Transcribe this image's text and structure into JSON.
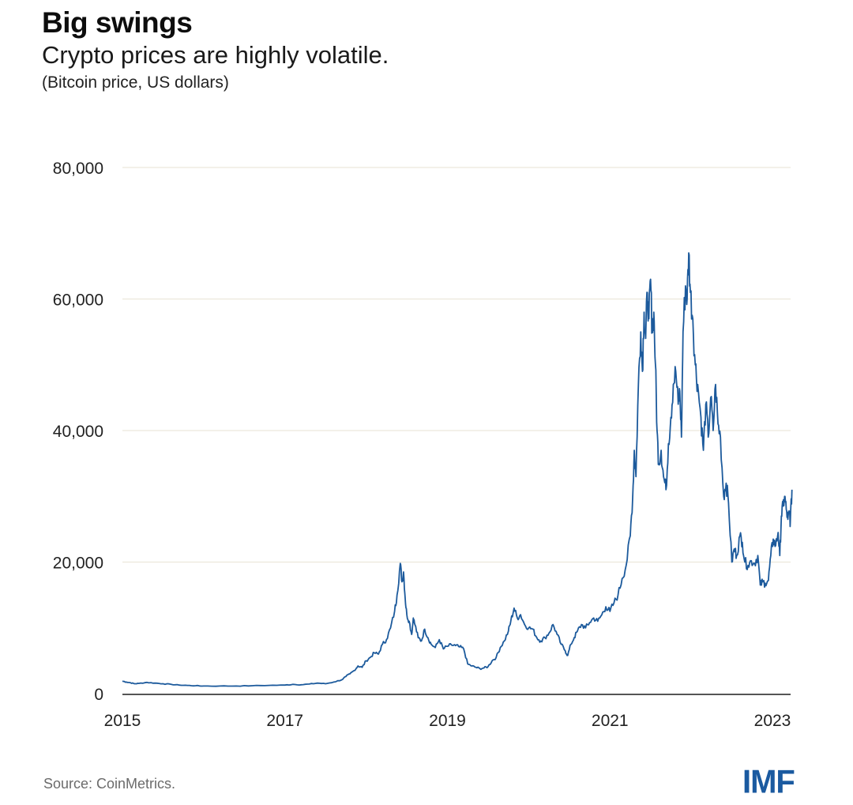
{
  "chart_data": {
    "type": "line",
    "title": "Big swings",
    "subtitle": "Crypto prices are highly volatile.",
    "units_note": "(Bitcoin price, US dollars)",
    "xlabel": "",
    "ylabel": "",
    "xlim": [
      2015,
      2023.2
    ],
    "ylim": [
      0,
      80000
    ],
    "y_ticks": [
      {
        "value": 0,
        "label": "0"
      },
      {
        "value": 20000,
        "label": "20,000"
      },
      {
        "value": 40000,
        "label": "40,000"
      },
      {
        "value": 60000,
        "label": "60,000"
      },
      {
        "value": 80000,
        "label": "80,000"
      }
    ],
    "x_ticks": [
      {
        "value": 2015,
        "label": "2015"
      },
      {
        "value": 2017,
        "label": "2017"
      },
      {
        "value": 2019,
        "label": "2019"
      },
      {
        "value": 2021,
        "label": "2021"
      },
      {
        "value": 2023,
        "label": "2023"
      }
    ],
    "grid": true,
    "legend": "none",
    "line_color": "#1c5a9c",
    "gridline_color": "#ece8dc",
    "series": [
      {
        "name": "Bitcoin price",
        "points": [
          [
            2015.0,
            1900
          ],
          [
            2015.05,
            1750
          ],
          [
            2015.1,
            1650
          ],
          [
            2015.15,
            1500
          ],
          [
            2015.2,
            1550
          ],
          [
            2015.3,
            1700
          ],
          [
            2015.4,
            1600
          ],
          [
            2015.5,
            1500
          ],
          [
            2015.6,
            1400
          ],
          [
            2015.7,
            1300
          ],
          [
            2015.8,
            1250
          ],
          [
            2015.9,
            1200
          ],
          [
            2016.0,
            1150
          ],
          [
            2016.2,
            1150
          ],
          [
            2016.4,
            1150
          ],
          [
            2016.6,
            1200
          ],
          [
            2016.8,
            1250
          ],
          [
            2017.0,
            1300
          ],
          [
            2017.1,
            1400
          ],
          [
            2017.2,
            1350
          ],
          [
            2017.3,
            1450
          ],
          [
            2017.4,
            1600
          ],
          [
            2017.5,
            1500
          ],
          [
            2017.6,
            1750
          ],
          [
            2017.7,
            2100
          ],
          [
            2017.75,
            2600
          ],
          [
            2017.8,
            3000
          ],
          [
            2017.85,
            3500
          ],
          [
            2017.9,
            4200
          ],
          [
            2017.95,
            4000
          ],
          [
            2018.0,
            5000
          ],
          [
            2018.05,
            5500
          ],
          [
            2018.1,
            6200
          ],
          [
            2018.15,
            6000
          ],
          [
            2018.2,
            7500
          ],
          [
            2018.25,
            8200
          ],
          [
            2018.3,
            10000
          ],
          [
            2018.35,
            12500
          ],
          [
            2018.38,
            15000
          ],
          [
            2018.42,
            19800
          ],
          [
            2018.44,
            17000
          ],
          [
            2018.46,
            18500
          ],
          [
            2018.48,
            14500
          ],
          [
            2018.5,
            12000
          ],
          [
            2018.53,
            11000
          ],
          [
            2018.56,
            9000
          ],
          [
            2018.58,
            11500
          ],
          [
            2018.6,
            10500
          ],
          [
            2018.64,
            8500
          ],
          [
            2018.68,
            8000
          ],
          [
            2018.72,
            9800
          ],
          [
            2018.76,
            8500
          ],
          [
            2018.8,
            7500
          ],
          [
            2018.85,
            7000
          ],
          [
            2018.9,
            8200
          ],
          [
            2018.95,
            6800
          ],
          [
            2019.0,
            7200
          ],
          [
            2019.05,
            7400
          ],
          [
            2019.1,
            7300
          ],
          [
            2019.15,
            7100
          ],
          [
            2019.2,
            6800
          ],
          [
            2019.25,
            4500
          ],
          [
            2019.3,
            4200
          ],
          [
            2019.35,
            4000
          ],
          [
            2019.4,
            3800
          ],
          [
            2019.45,
            3900
          ],
          [
            2019.5,
            4100
          ],
          [
            2019.55,
            5000
          ],
          [
            2019.6,
            5500
          ],
          [
            2019.65,
            7000
          ],
          [
            2019.7,
            8000
          ],
          [
            2019.75,
            9500
          ],
          [
            2019.78,
            11000
          ],
          [
            2019.82,
            13000
          ],
          [
            2019.86,
            11500
          ],
          [
            2019.9,
            12000
          ],
          [
            2019.95,
            10500
          ],
          [
            2020.0,
            10000
          ],
          [
            2020.05,
            9800
          ],
          [
            2020.1,
            8500
          ],
          [
            2020.15,
            8000
          ],
          [
            2020.2,
            8500
          ],
          [
            2020.25,
            9200
          ],
          [
            2020.3,
            10500
          ],
          [
            2020.35,
            9000
          ],
          [
            2020.4,
            7500
          ],
          [
            2020.45,
            6500
          ],
          [
            2020.48,
            5800
          ],
          [
            2020.52,
            7500
          ],
          [
            2020.56,
            8500
          ],
          [
            2020.6,
            9500
          ],
          [
            2020.65,
            10500
          ],
          [
            2020.7,
            10000
          ],
          [
            2020.75,
            10800
          ],
          [
            2020.8,
            11500
          ],
          [
            2020.85,
            11000
          ],
          [
            2020.9,
            12000
          ],
          [
            2020.95,
            13200
          ],
          [
            2021.0,
            12500
          ],
          [
            2021.05,
            13800
          ],
          [
            2021.1,
            15000
          ],
          [
            2021.15,
            17500
          ],
          [
            2021.2,
            19500
          ],
          [
            2021.25,
            24000
          ],
          [
            2021.28,
            30000
          ],
          [
            2021.3,
            37000
          ],
          [
            2021.32,
            33000
          ],
          [
            2021.35,
            47000
          ],
          [
            2021.38,
            55000
          ],
          [
            2021.4,
            49000
          ],
          [
            2021.42,
            58000
          ],
          [
            2021.44,
            54000
          ],
          [
            2021.46,
            61000
          ],
          [
            2021.48,
            57000
          ],
          [
            2021.5,
            63000
          ],
          [
            2021.52,
            55000
          ],
          [
            2021.54,
            58000
          ],
          [
            2021.56,
            50000
          ],
          [
            2021.58,
            40000
          ],
          [
            2021.6,
            35000
          ],
          [
            2021.63,
            37000
          ],
          [
            2021.66,
            33000
          ],
          [
            2021.69,
            31000
          ],
          [
            2021.72,
            38000
          ],
          [
            2021.75,
            42000
          ],
          [
            2021.78,
            47000
          ],
          [
            2021.81,
            49000
          ],
          [
            2021.84,
            44000
          ],
          [
            2021.86,
            46000
          ],
          [
            2021.88,
            39000
          ],
          [
            2021.9,
            55000
          ],
          [
            2021.93,
            62000
          ],
          [
            2021.95,
            60000
          ],
          [
            2021.97,
            67000
          ],
          [
            2021.99,
            61000
          ],
          [
            2022.02,
            57000
          ],
          [
            2022.05,
            50000
          ],
          [
            2022.08,
            47000
          ],
          [
            2022.12,
            42000
          ],
          [
            2022.15,
            37000
          ],
          [
            2022.18,
            44000
          ],
          [
            2022.21,
            39000
          ],
          [
            2022.24,
            45000
          ],
          [
            2022.27,
            40000
          ],
          [
            2022.3,
            47000
          ],
          [
            2022.33,
            41000
          ],
          [
            2022.36,
            39000
          ],
          [
            2022.4,
            30000
          ],
          [
            2022.43,
            32000
          ],
          [
            2022.46,
            29000
          ],
          [
            2022.5,
            20000
          ],
          [
            2022.53,
            22000
          ],
          [
            2022.56,
            21000
          ],
          [
            2022.6,
            24000
          ],
          [
            2022.63,
            23000
          ],
          [
            2022.66,
            20000
          ],
          [
            2022.7,
            19500
          ],
          [
            2022.74,
            20200
          ],
          [
            2022.78,
            19800
          ],
          [
            2022.82,
            21000
          ],
          [
            2022.85,
            16500
          ],
          [
            2022.88,
            17000
          ],
          [
            2022.91,
            16800
          ],
          [
            2022.95,
            17200
          ],
          [
            2022.98,
            21000
          ],
          [
            2023.01,
            23500
          ],
          [
            2023.04,
            22500
          ],
          [
            2023.07,
            24500
          ],
          [
            2023.09,
            21000
          ],
          [
            2023.11,
            27000
          ],
          [
            2023.13,
            28500
          ],
          [
            2023.15,
            30000
          ],
          [
            2023.17,
            28000
          ],
          [
            2023.19,
            26500
          ],
          [
            2023.21,
            27500
          ],
          [
            2023.22,
            26000
          ],
          [
            2023.24,
            31000
          ]
        ]
      }
    ]
  },
  "footer": {
    "source": "Source: CoinMetrics.",
    "logo_text": "IMF",
    "logo_color": "#1a5aa0"
  }
}
